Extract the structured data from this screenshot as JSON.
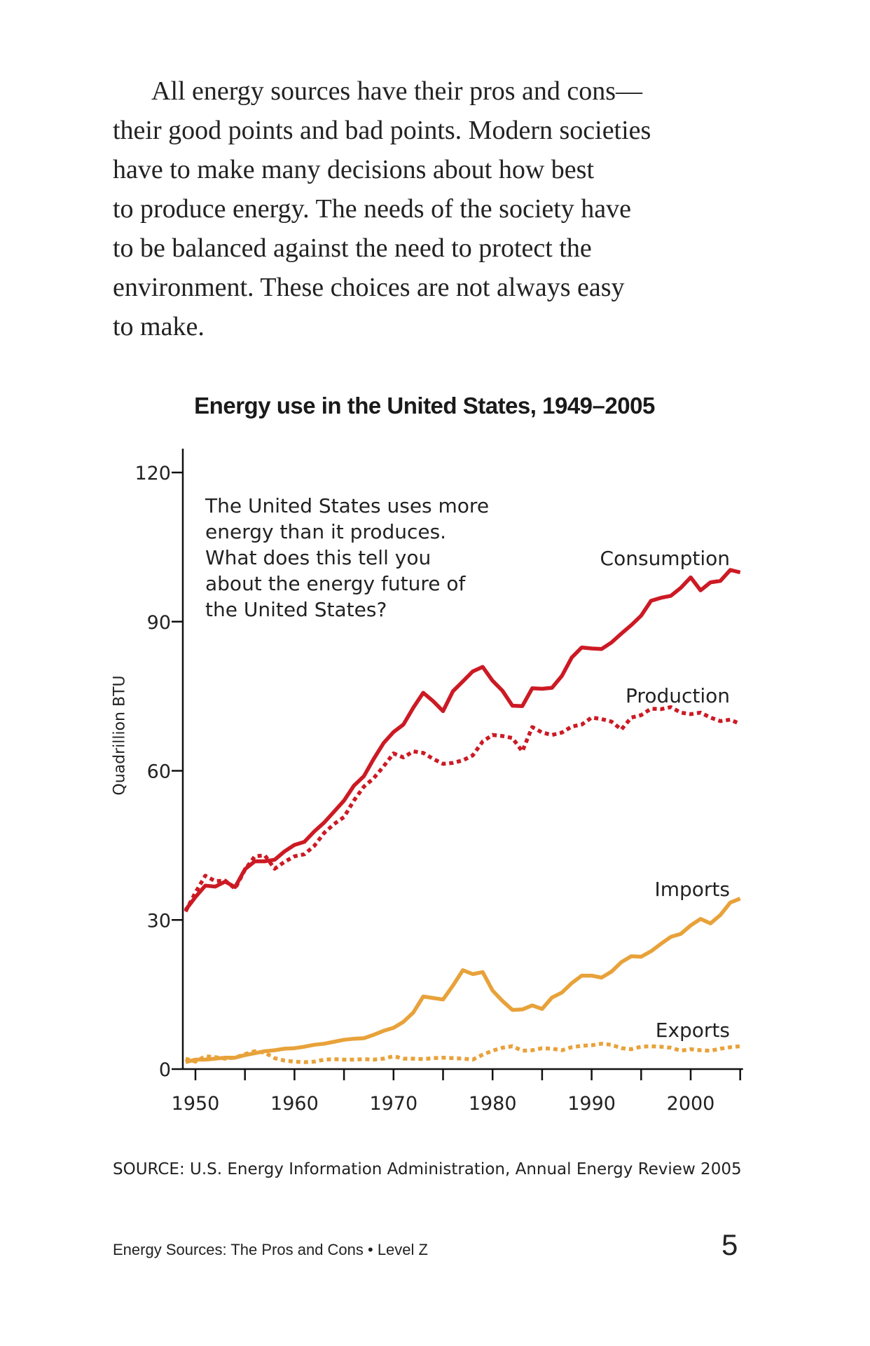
{
  "paragraph": {
    "lines": [
      "All energy sources have their pros and cons—",
      "their good points and bad points. Modern societies",
      "have to make many decisions about how best",
      "to produce energy. The needs of the society have",
      "to be balanced against the need to protect the",
      "environment. These choices are not always easy",
      "to make."
    ]
  },
  "chart_data": {
    "type": "line",
    "title": "Energy use in the United States, 1949–2005",
    "xlabel": "",
    "ylabel": "Quadrillion BTU",
    "xlim": [
      1949,
      2005
    ],
    "ylim": [
      0,
      120
    ],
    "x_ticks": [
      1950,
      1960,
      1970,
      1980,
      1990,
      2000
    ],
    "y_ticks": [
      0,
      30,
      60,
      90,
      120
    ],
    "grid": false,
    "annotation": [
      "The United States uses more",
      "energy than it produces.",
      "What does this tell you",
      "about the energy future of",
      "the United States?"
    ],
    "x": [
      1949,
      1950,
      1951,
      1952,
      1953,
      1954,
      1955,
      1956,
      1957,
      1958,
      1959,
      1960,
      1961,
      1962,
      1963,
      1964,
      1965,
      1966,
      1967,
      1968,
      1969,
      1970,
      1971,
      1972,
      1973,
      1974,
      1975,
      1976,
      1977,
      1978,
      1979,
      1980,
      1981,
      1982,
      1983,
      1984,
      1985,
      1986,
      1987,
      1988,
      1989,
      1990,
      1991,
      1992,
      1993,
      1994,
      1995,
      1996,
      1997,
      1998,
      1999,
      2000,
      2001,
      2002,
      2003,
      2004,
      2005
    ],
    "series": [
      {
        "name": "Consumption",
        "color": "#cc1a24",
        "style": "solid",
        "values": [
          32,
          34.6,
          36.9,
          36.7,
          37.7,
          36.6,
          40.2,
          41.8,
          41.8,
          42.1,
          43.8,
          45.1,
          45.7,
          47.8,
          49.6,
          51.8,
          54.0,
          57.0,
          58.9,
          62.4,
          65.6,
          67.8,
          69.3,
          72.7,
          75.7,
          74.0,
          72.0,
          76.0,
          78.0,
          80.0,
          80.9,
          78.1,
          76.1,
          73.1,
          73.0,
          76.6,
          76.5,
          76.7,
          79.1,
          82.8,
          84.8,
          84.6,
          84.5,
          85.8,
          87.6,
          89.3,
          91.2,
          94.2,
          94.8,
          95.2,
          96.8,
          98.9,
          96.3,
          97.9,
          98.2,
          100.4,
          99.9
        ]
      },
      {
        "name": "Production",
        "color": "#cc1a24",
        "style": "dotted",
        "values": [
          31.7,
          35.5,
          38.9,
          37.8,
          37.9,
          36.3,
          40.1,
          42.8,
          43.0,
          40.3,
          41.7,
          42.8,
          43.2,
          44.9,
          47.5,
          49.3,
          50.7,
          54.0,
          56.8,
          58.5,
          60.9,
          63.5,
          62.7,
          63.9,
          63.6,
          62.4,
          61.4,
          61.6,
          62.1,
          63.1,
          65.9,
          67.2,
          67.0,
          66.6,
          63.9,
          68.8,
          67.7,
          67.2,
          67.7,
          68.9,
          69.3,
          70.7,
          70.4,
          69.9,
          68.3,
          70.7,
          71.2,
          72.5,
          72.4,
          72.8,
          71.7,
          71.4,
          71.7,
          70.7,
          70.0,
          70.3,
          69.4
        ]
      },
      {
        "name": "Imports",
        "color": "#e8a23a",
        "style": "solid",
        "values": [
          1.4,
          1.9,
          1.9,
          2.1,
          2.3,
          2.3,
          2.8,
          3.2,
          3.6,
          3.8,
          4.1,
          4.2,
          4.5,
          4.9,
          5.1,
          5.5,
          5.9,
          6.1,
          6.2,
          6.9,
          7.7,
          8.3,
          9.5,
          11.4,
          14.6,
          14.3,
          14.0,
          16.8,
          19.9,
          19.1,
          19.5,
          15.8,
          13.7,
          11.9,
          12.0,
          12.8,
          12.1,
          14.4,
          15.4,
          17.3,
          18.8,
          18.8,
          18.4,
          19.6,
          21.5,
          22.7,
          22.6,
          23.7,
          25.2,
          26.6,
          27.2,
          28.9,
          30.2,
          29.3,
          31.0,
          33.5,
          34.3
        ]
      },
      {
        "name": "Exports",
        "color": "#e8a23a",
        "style": "dotted",
        "values": [
          2.1,
          1.5,
          2.6,
          2.4,
          2.1,
          2.3,
          3.0,
          3.6,
          3.3,
          2.2,
          1.7,
          1.5,
          1.4,
          1.5,
          1.9,
          2.0,
          1.9,
          1.9,
          2.0,
          1.9,
          2.1,
          2.6,
          2.1,
          2.1,
          2.0,
          2.2,
          2.3,
          2.2,
          2.1,
          1.9,
          2.9,
          3.7,
          4.3,
          4.6,
          3.7,
          3.8,
          4.2,
          4.1,
          3.8,
          4.4,
          4.7,
          4.8,
          5.1,
          4.9,
          4.2,
          4.0,
          4.5,
          4.6,
          4.5,
          4.3,
          3.7,
          4.0,
          3.8,
          3.7,
          4.1,
          4.4,
          4.6
        ]
      }
    ],
    "source": "SOURCE: U.S. Energy Information Administration, Annual Energy Review 2005"
  },
  "footer": {
    "book_title": "Energy Sources: The Pros and Cons • Level Z",
    "page_number": "5"
  }
}
